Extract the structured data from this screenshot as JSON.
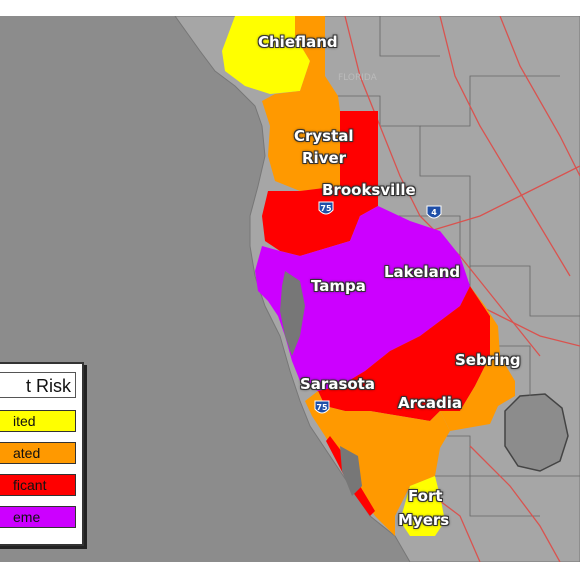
{
  "colors": {
    "gulf": "#8c8c8c",
    "land": "#a6a6a6",
    "limited": "#ffff00",
    "elevated": "#ff9900",
    "significant": "#ff0000",
    "extreme": "#cc00ff",
    "roads": "#e0504a"
  },
  "map": {
    "state_label": "FLORIDA",
    "cities": {
      "chiefland": "Chiefland",
      "crystal_river_1": "Crystal",
      "crystal_river_2": "River",
      "brooksville": "Brooksville",
      "tampa": "Tampa",
      "lakeland": "Lakeland",
      "sarasota": "Sarasota",
      "sebring": "Sebring",
      "arcadia": "Arcadia",
      "fort_myers_1": "Fort",
      "fort_myers_2": "Myers"
    },
    "shields": {
      "i75_north": "75",
      "i75_south": "75",
      "i4": "4"
    }
  },
  "legend": {
    "title": "t Risk",
    "items": [
      {
        "label": "ited",
        "color": "#ffff00"
      },
      {
        "label": "ated",
        "color": "#ff9900"
      },
      {
        "label": "ficant",
        "color": "#ff0000"
      },
      {
        "label": "eme",
        "color": "#cc00ff"
      }
    ]
  }
}
